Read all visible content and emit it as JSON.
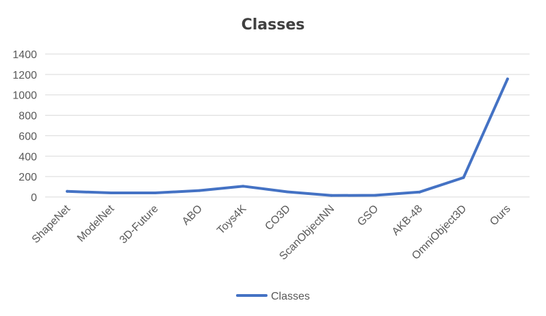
{
  "chart_data": {
    "type": "line",
    "title": "Classes",
    "xlabel": "",
    "ylabel": "",
    "categories": [
      "ShapeNet",
      "ModelNet",
      "3D-Future",
      "ABO",
      "Toys4K",
      "CO3D",
      "ScanObjectNN",
      "GSO",
      "AKB-48",
      "OmniObject3D",
      "Ours"
    ],
    "series": [
      {
        "name": "Classes",
        "values": [
          55,
          40,
          40,
          63,
          105,
          50,
          15,
          17,
          48,
          190,
          1156
        ],
        "color": "#4472c4"
      }
    ],
    "ylim": [
      0,
      1400
    ],
    "yticks": [
      0,
      200,
      400,
      600,
      800,
      1000,
      1200,
      1400
    ],
    "grid": true,
    "legend": "bottom"
  }
}
